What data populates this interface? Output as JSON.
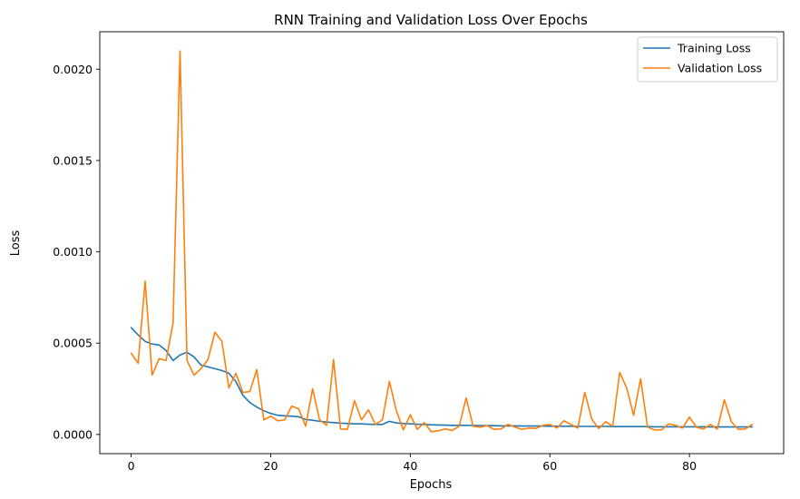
{
  "chart_data": {
    "type": "line",
    "title": "RNN Training and Validation Loss Over Epochs",
    "xlabel": "Epochs",
    "ylabel": "Loss",
    "xlim": [
      -4.5,
      93.5
    ],
    "ylim": [
      -0.000105,
      0.002205
    ],
    "xticks": [
      0,
      20,
      40,
      60,
      80
    ],
    "xtick_labels": [
      "0",
      "20",
      "40",
      "60",
      "80"
    ],
    "yticks": [
      0.0,
      0.0005,
      0.001,
      0.0015,
      0.002
    ],
    "ytick_labels": [
      "0.0000",
      "0.0005",
      "0.0010",
      "0.0015",
      "0.0020"
    ],
    "grid": false,
    "legend_position": "top-right",
    "series": [
      {
        "name": "Training Loss",
        "color": "#1f77b4",
        "x": [
          0,
          1,
          2,
          3,
          4,
          5,
          6,
          7,
          8,
          9,
          10,
          11,
          12,
          13,
          14,
          15,
          16,
          17,
          18,
          19,
          20,
          21,
          22,
          23,
          24,
          25,
          26,
          27,
          28,
          29,
          30,
          31,
          32,
          33,
          34,
          35,
          36,
          37,
          38,
          39,
          40,
          41,
          42,
          43,
          44,
          45,
          46,
          47,
          48,
          49,
          50,
          51,
          52,
          53,
          54,
          55,
          56,
          57,
          58,
          59,
          60,
          61,
          62,
          63,
          64,
          65,
          66,
          67,
          68,
          69,
          70,
          71,
          72,
          73,
          74,
          75,
          76,
          77,
          78,
          79,
          80,
          81,
          82,
          83,
          84,
          85,
          86,
          87,
          88,
          89
        ],
        "values": [
          0.000585,
          0.000545,
          0.00051,
          0.000495,
          0.00049,
          0.00046,
          0.000405,
          0.000435,
          0.00045,
          0.000425,
          0.00038,
          0.00037,
          0.00036,
          0.00035,
          0.000335,
          0.00029,
          0.000215,
          0.000175,
          0.00015,
          0.00013,
          0.000115,
          0.000105,
          0.000102,
          0.0001,
          9.7e-05,
          8.2e-05,
          7.8e-05,
          7.2e-05,
          6.8e-05,
          6.5e-05,
          6.2e-05,
          6e-05,
          5.8e-05,
          5.8e-05,
          5.6e-05,
          5.5e-05,
          5.5e-05,
          7.2e-05,
          6.3e-05,
          6e-05,
          5.8e-05,
          5.6e-05,
          5.5e-05,
          5.3e-05,
          5.2e-05,
          5.1e-05,
          5e-05,
          5e-05,
          5e-05,
          4.9e-05,
          4.9e-05,
          4.8e-05,
          4.8e-05,
          4.7e-05,
          4.7e-05,
          4.7e-05,
          4.6e-05,
          4.6e-05,
          4.6e-05,
          4.6e-05,
          4.5e-05,
          4.5e-05,
          4.5e-05,
          4.5e-05,
          4.4e-05,
          4.4e-05,
          4.4e-05,
          4.4e-05,
          4.4e-05,
          4.3e-05,
          4.3e-05,
          4.3e-05,
          4.3e-05,
          4.3e-05,
          4.3e-05,
          4.2e-05,
          4.2e-05,
          4.2e-05,
          4.2e-05,
          4.2e-05,
          4.2e-05,
          4.2e-05,
          4.2e-05,
          4.1e-05,
          4.1e-05,
          4.1e-05,
          4.1e-05,
          4.1e-05,
          4.1e-05,
          4.2e-05
        ]
      },
      {
        "name": "Validation Loss",
        "color": "#ff7f0e",
        "x": [
          0,
          1,
          2,
          3,
          4,
          5,
          6,
          7,
          8,
          9,
          10,
          11,
          12,
          13,
          14,
          15,
          16,
          17,
          18,
          19,
          20,
          21,
          22,
          23,
          24,
          25,
          26,
          27,
          28,
          29,
          30,
          31,
          32,
          33,
          34,
          35,
          36,
          37,
          38,
          39,
          40,
          41,
          42,
          43,
          44,
          45,
          46,
          47,
          48,
          49,
          50,
          51,
          52,
          53,
          54,
          55,
          56,
          57,
          58,
          59,
          60,
          61,
          62,
          63,
          64,
          65,
          66,
          67,
          68,
          69,
          70,
          71,
          72,
          73,
          74,
          75,
          76,
          77,
          78,
          79,
          80,
          81,
          82,
          83,
          84,
          85,
          86,
          87,
          88,
          89
        ],
        "values": [
          0.000445,
          0.00039,
          0.00084,
          0.000325,
          0.000415,
          0.000405,
          0.00061,
          0.0021,
          0.000405,
          0.000325,
          0.00036,
          0.00041,
          0.00056,
          0.00051,
          0.000255,
          0.000335,
          0.00023,
          0.000235,
          0.000355,
          8e-05,
          0.0001,
          7.5e-05,
          8e-05,
          0.000155,
          0.00014,
          4.5e-05,
          0.00025,
          8e-05,
          5e-05,
          0.00041,
          3e-05,
          2.8e-05,
          0.000185,
          8e-05,
          0.000135,
          5.5e-05,
          8e-05,
          0.00029,
          0.00013,
          2.5e-05,
          0.000108,
          2.8e-05,
          6.5e-05,
          1.5e-05,
          2e-05,
          3e-05,
          2.2e-05,
          4.5e-05,
          0.0002,
          4.5e-05,
          4e-05,
          4.8e-05,
          2.8e-05,
          3e-05,
          5.5e-05,
          4e-05,
          2.8e-05,
          3.5e-05,
          3.3e-05,
          5e-05,
          5.5e-05,
          3.5e-05,
          7.5e-05,
          5.5e-05,
          3.5e-05,
          0.00023,
          8.5e-05,
          3.2e-05,
          7e-05,
          4.5e-05,
          0.00034,
          0.000255,
          0.000105,
          0.000305,
          4e-05,
          2.5e-05,
          2.5e-05,
          5.8e-05,
          5e-05,
          3.5e-05,
          9.5e-05,
          4e-05,
          3e-05,
          5.5e-05,
          3e-05,
          0.00019,
          7e-05,
          2.8e-05,
          3e-05,
          5.5e-05
        ]
      }
    ]
  }
}
